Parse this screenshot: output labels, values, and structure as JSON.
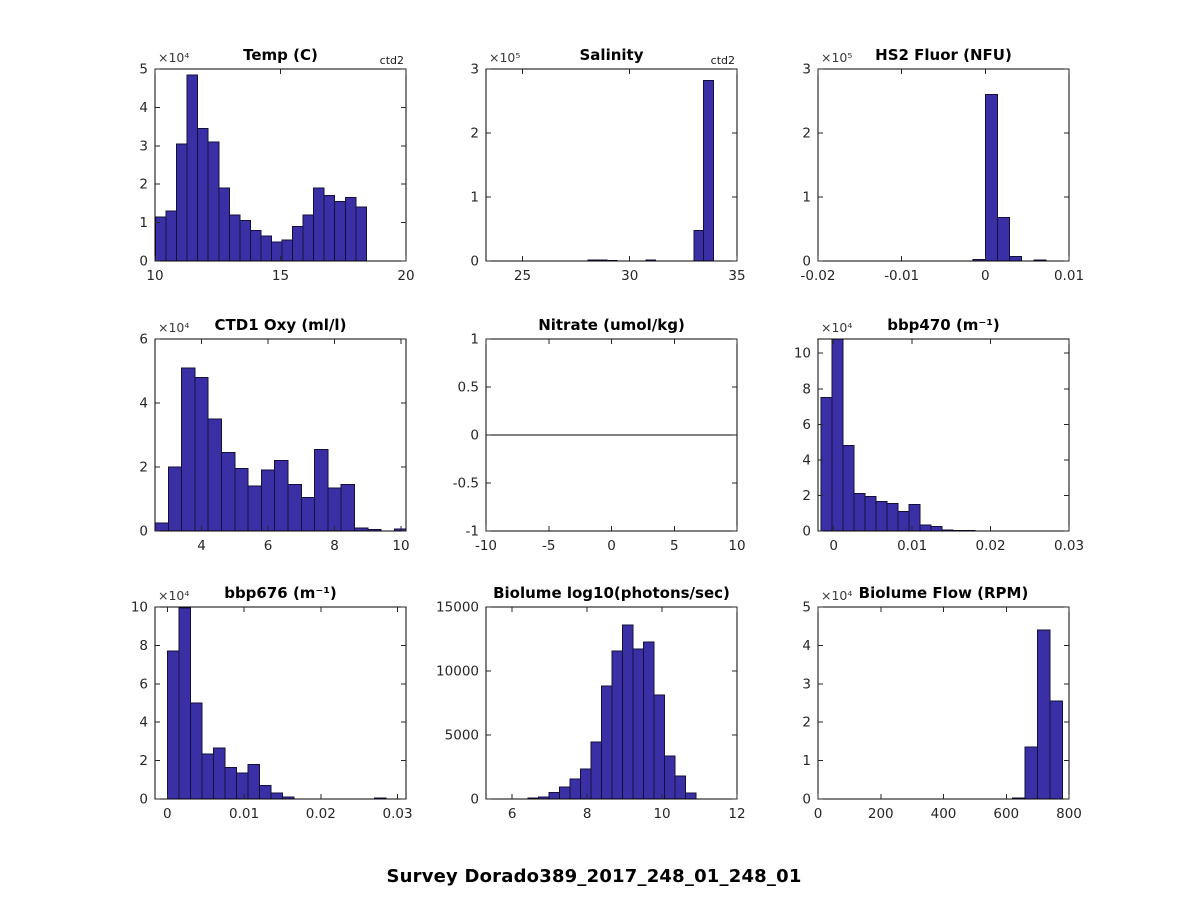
{
  "figure": {
    "title": "Survey Dorado389_2017_248_01_248_01",
    "background": "#ffffff",
    "bar_fill_color": "#3b2fa6",
    "bar_edge_color": "#15103a",
    "axes_color": "#262626"
  },
  "chart_data": [
    {
      "type": "bar",
      "title": "Temp (C)",
      "annotation": "ctd2",
      "exponent_label": "×10⁴",
      "grid": {
        "row": 0,
        "col": 0
      },
      "xlim": [
        10,
        20
      ],
      "ylim": [
        0,
        50000
      ],
      "xticks": {
        "values": [
          10,
          15,
          20
        ],
        "labels": [
          "10",
          "15",
          "20"
        ]
      },
      "yticks": {
        "values": [
          0,
          10000,
          20000,
          30000,
          40000,
          50000
        ],
        "labels": [
          "0",
          "1",
          "2",
          "3",
          "4",
          "5"
        ]
      },
      "bins": {
        "start": 10.02,
        "width": 0.42
      },
      "counts": [
        11500,
        13000,
        30500,
        48500,
        34500,
        31000,
        19000,
        12000,
        10500,
        8000,
        6500,
        5000,
        5500,
        9000,
        12000,
        19000,
        17000,
        15500,
        16500,
        14000
      ]
    },
    {
      "type": "bar",
      "title": "Salinity",
      "annotation": "ctd2",
      "exponent_label": "×10⁵",
      "grid": {
        "row": 0,
        "col": 1
      },
      "xlim": [
        23.3,
        35
      ],
      "ylim": [
        0,
        300000
      ],
      "xticks": {
        "values": [
          25,
          30,
          35
        ],
        "labels": [
          "25",
          "30",
          "35"
        ]
      },
      "yticks": {
        "values": [
          0,
          100000,
          200000,
          300000
        ],
        "labels": [
          "0",
          "1",
          "2",
          "3"
        ]
      },
      "bins": {
        "start": 28.05,
        "width": 0.45
      },
      "counts": [
        1500,
        1500,
        1000,
        0,
        0,
        0,
        1500,
        0,
        0,
        0,
        0,
        48000,
        282000
      ]
    },
    {
      "type": "bar",
      "title": "HS2 Fluor (NFU)",
      "annotation": "",
      "exponent_label": "×10⁵",
      "grid": {
        "row": 0,
        "col": 2
      },
      "xlim": [
        -0.02,
        0.01
      ],
      "ylim": [
        0,
        300000
      ],
      "xticks": {
        "values": [
          -0.02,
          -0.01,
          0,
          0.01
        ],
        "labels": [
          "-0.02",
          "-0.01",
          "0",
          "0.01"
        ]
      },
      "yticks": {
        "values": [
          0,
          100000,
          200000,
          300000
        ],
        "labels": [
          "0",
          "1",
          "2",
          "3"
        ]
      },
      "bins": {
        "start": -0.00145,
        "width": 0.00145
      },
      "counts": [
        2000,
        260000,
        68000,
        7000,
        0,
        1500
      ]
    },
    {
      "type": "bar",
      "title": "CTD1 Oxy (ml/l)",
      "annotation": "",
      "exponent_label": "×10⁴",
      "grid": {
        "row": 1,
        "col": 0
      },
      "xlim": [
        2.6,
        10.15
      ],
      "ylim": [
        0,
        60000
      ],
      "xticks": {
        "values": [
          4,
          6,
          8,
          10
        ],
        "labels": [
          "4",
          "6",
          "8",
          "10"
        ]
      },
      "yticks": {
        "values": [
          0,
          20000,
          40000,
          60000
        ],
        "labels": [
          "0",
          "2",
          "4",
          "6"
        ]
      },
      "bins": {
        "start": 2.6,
        "width": 0.4
      },
      "counts": [
        2500,
        20000,
        51000,
        48000,
        35000,
        24500,
        19500,
        14000,
        19000,
        22000,
        14500,
        10500,
        25500,
        13500,
        14500,
        1000,
        500,
        0,
        700
      ]
    },
    {
      "type": "line",
      "title": "Nitrate (umol/kg)",
      "annotation": "",
      "exponent_label": "",
      "grid": {
        "row": 1,
        "col": 1
      },
      "xlim": [
        -10,
        10
      ],
      "ylim": [
        -1,
        1
      ],
      "xticks": {
        "values": [
          -10,
          -5,
          0,
          5,
          10
        ],
        "labels": [
          "-10",
          "-5",
          "0",
          "5",
          "10"
        ]
      },
      "yticks": {
        "values": [
          -1,
          -0.5,
          0,
          0.5,
          1
        ],
        "labels": [
          "-1",
          "-0.5",
          "0",
          "0.5",
          "1"
        ]
      },
      "bins": null,
      "counts": [],
      "zero_line": true
    },
    {
      "type": "bar",
      "title": "bbp470 (m⁻¹)",
      "annotation": "",
      "exponent_label": "×10⁴",
      "grid": {
        "row": 1,
        "col": 2
      },
      "xlim": [
        -0.002,
        0.03
      ],
      "ylim": [
        0,
        108000
      ],
      "xticks": {
        "values": [
          0,
          0.01,
          0.02,
          0.03
        ],
        "labels": [
          "0",
          "0.01",
          "0.02",
          "0.03"
        ]
      },
      "yticks": {
        "values": [
          0,
          20000,
          40000,
          60000,
          80000,
          100000
        ],
        "labels": [
          "0",
          "2",
          "4",
          "6",
          "8",
          "10"
        ]
      },
      "bins": {
        "start": -0.0016,
        "width": 0.0014
      },
      "counts": [
        75000,
        108000,
        48000,
        21000,
        19500,
        16500,
        15500,
        11000,
        15000,
        3500,
        2500,
        700,
        400,
        200
      ]
    },
    {
      "type": "bar",
      "title": "bbp676 (m⁻¹)",
      "annotation": "",
      "exponent_label": "×10⁴",
      "grid": {
        "row": 2,
        "col": 0
      },
      "xlim": [
        -0.0016,
        0.0311
      ],
      "ylim": [
        0,
        100000
      ],
      "xticks": {
        "values": [
          0,
          0.01,
          0.02,
          0.03
        ],
        "labels": [
          "0",
          "0.01",
          "0.02",
          "0.03"
        ]
      },
      "yticks": {
        "values": [
          0,
          20000,
          40000,
          60000,
          80000,
          100000
        ],
        "labels": [
          "0",
          "2",
          "4",
          "6",
          "8",
          "10"
        ]
      },
      "bins": {
        "start": 0,
        "width": 0.0015
      },
      "counts": [
        77000,
        99500,
        50000,
        23500,
        26500,
        16500,
        13500,
        18000,
        7000,
        3000,
        1000,
        0,
        0,
        0,
        0,
        0,
        0,
        0,
        500
      ]
    },
    {
      "type": "bar",
      "title": "Biolume log10(photons/sec)",
      "annotation": "",
      "exponent_label": "",
      "grid": {
        "row": 2,
        "col": 1
      },
      "xlim": [
        5.3,
        12
      ],
      "ylim": [
        0,
        15000
      ],
      "xticks": {
        "values": [
          6,
          8,
          10,
          12
        ],
        "labels": [
          "6",
          "8",
          "10",
          "12"
        ]
      },
      "yticks": {
        "values": [
          0,
          5000,
          10000,
          15000
        ],
        "labels": [
          "0",
          "5000",
          "10000",
          "15000"
        ]
      },
      "bins": {
        "start": 6.42,
        "width": 0.28
      },
      "counts": [
        60,
        150,
        500,
        950,
        1550,
        2350,
        4450,
        8830,
        11560,
        13600,
        11720,
        12270,
        8120,
        3360,
        1800,
        470
      ]
    },
    {
      "type": "bar",
      "title": "Biolume Flow (RPM)",
      "annotation": "",
      "exponent_label": "×10⁴",
      "grid": {
        "row": 2,
        "col": 2
      },
      "xlim": [
        0,
        800
      ],
      "ylim": [
        0,
        50000
      ],
      "xticks": {
        "values": [
          0,
          200,
          400,
          600,
          800
        ],
        "labels": [
          "0",
          "200",
          "400",
          "600",
          "800"
        ]
      },
      "yticks": {
        "values": [
          0,
          10000,
          20000,
          30000,
          40000,
          50000
        ],
        "labels": [
          "0",
          "1",
          "2",
          "3",
          "4",
          "5"
        ]
      },
      "bins": {
        "start": 620,
        "width": 40
      },
      "counts": [
        300,
        13500,
        44000,
        25500
      ]
    }
  ]
}
